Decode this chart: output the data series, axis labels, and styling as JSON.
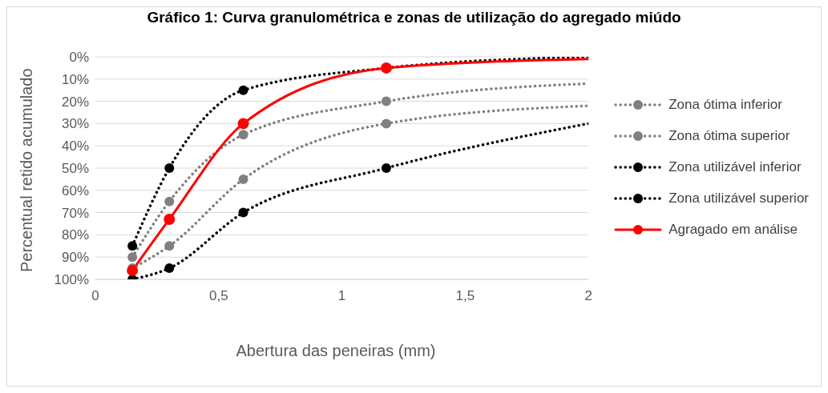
{
  "chart_data": {
    "type": "line",
    "title": "Gráfico 1: Curva granulométrica e zonas de utilização do agregado miúdo",
    "xlabel": "Abertura das peneiras (mm)",
    "ylabel": "Percentual retido acumulado",
    "x": [
      0.15,
      0.3,
      0.6,
      1.18,
      2
    ],
    "series": [
      {
        "name": "Zona ótima inferior",
        "color": "#808080",
        "line_style": "dotted",
        "values": [
          90,
          65,
          35,
          20,
          12
        ]
      },
      {
        "name": "Zona ótima superior",
        "color": "#808080",
        "line_style": "dotted",
        "values": [
          95,
          85,
          55,
          30,
          22
        ]
      },
      {
        "name": "Zona utilizável inferior",
        "color": "#000000",
        "line_style": "dotted",
        "values": [
          85,
          50,
          15,
          5,
          0
        ]
      },
      {
        "name": "Zona utilizável superior",
        "color": "#000000",
        "line_style": "dotted",
        "values": [
          100,
          95,
          70,
          50,
          30
        ]
      },
      {
        "name": "Agragado em análise",
        "color": "#ff0000",
        "line_style": "solid",
        "values": [
          96,
          73,
          30,
          5,
          1
        ]
      }
    ],
    "xlim": [
      0,
      2
    ],
    "xticks": [
      0,
      {
        "value": 0.5,
        "label": "0,5"
      },
      1,
      {
        "value": 1.5,
        "label": "1,5"
      },
      2
    ],
    "ylim": [
      100,
      0
    ],
    "yticks": [
      {
        "value": 0,
        "label": "0%"
      },
      {
        "value": 10,
        "label": "10%"
      },
      {
        "value": 20,
        "label": "20%"
      },
      {
        "value": 30,
        "label": "30%"
      },
      {
        "value": 40,
        "label": "40%"
      },
      {
        "value": 50,
        "label": "50%"
      },
      {
        "value": 60,
        "label": "60%"
      },
      {
        "value": 70,
        "label": "70%"
      },
      {
        "value": 80,
        "label": "80%"
      },
      {
        "value": 90,
        "label": "90%"
      },
      {
        "value": 100,
        "label": "100%"
      }
    ],
    "grid": "y",
    "legend": "right",
    "marker": "circle"
  }
}
